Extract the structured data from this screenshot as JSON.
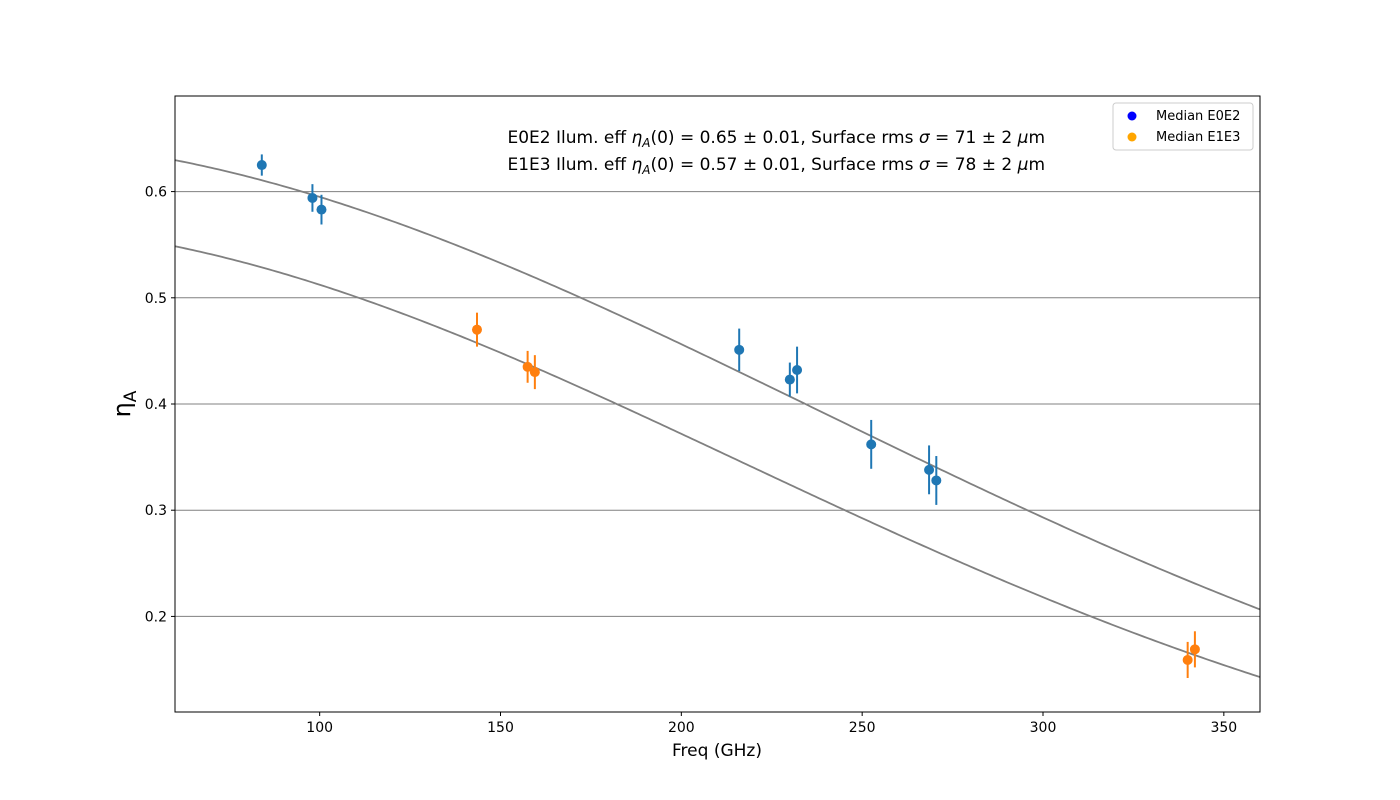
{
  "chart_data": {
    "type": "scatter",
    "xlabel": "Freq (GHz)",
    "ylabel": "η",
    "ylabel_sub": "A",
    "xlim": [
      60,
      360
    ],
    "ylim": [
      0.11,
      0.69
    ],
    "xticks": [
      100,
      150,
      200,
      250,
      300,
      350
    ],
    "yticks": [
      0.2,
      0.3,
      0.4,
      0.5,
      0.6
    ],
    "grid": "horizontal",
    "legend_position": "top-right",
    "annotations": [
      {
        "pre": "E0E2 Ilum. eff ",
        "eta": "η",
        "eta_sub": "A",
        "mid": "(0) = 0.65 ± 0.01,  Surface rms  ",
        "sigma": "σ",
        "post": " = 71 ± 2 ",
        "mu": "μ",
        "unit": "m"
      },
      {
        "pre": "E1E3 Ilum. eff ",
        "eta": "η",
        "eta_sub": "A",
        "mid": "(0) = 0.57 ± 0.01,  Surface rms  ",
        "sigma": "σ",
        "post": " = 78 ± 2 ",
        "mu": "μ",
        "unit": "m"
      }
    ],
    "series": [
      {
        "name": "Median E0E2",
        "color": "#1f77b4",
        "legend_color": "#0000ff",
        "points": [
          {
            "x": 84,
            "y": 0.625,
            "err": 0.01
          },
          {
            "x": 98,
            "y": 0.594,
            "err": 0.013
          },
          {
            "x": 100.5,
            "y": 0.583,
            "err": 0.014
          },
          {
            "x": 216,
            "y": 0.451,
            "err": 0.02
          },
          {
            "x": 230,
            "y": 0.423,
            "err": 0.016
          },
          {
            "x": 232,
            "y": 0.432,
            "err": 0.022
          },
          {
            "x": 252.5,
            "y": 0.362,
            "err": 0.023
          },
          {
            "x": 268.5,
            "y": 0.338,
            "err": 0.023
          },
          {
            "x": 270.5,
            "y": 0.328,
            "err": 0.023
          }
        ]
      },
      {
        "name": "Median E1E3",
        "color": "#ff7f0e",
        "legend_color": "#ffa500",
        "points": [
          {
            "x": 143.5,
            "y": 0.47,
            "err": 0.016
          },
          {
            "x": 157.5,
            "y": 0.435,
            "err": 0.015
          },
          {
            "x": 159.5,
            "y": 0.43,
            "err": 0.016
          },
          {
            "x": 340,
            "y": 0.159,
            "err": 0.017
          },
          {
            "x": 342,
            "y": 0.169,
            "err": 0.017
          }
        ]
      }
    ],
    "fits": [
      {
        "eta0": 0.65,
        "sigma_um": 71,
        "color": "#808080"
      },
      {
        "eta0": 0.57,
        "sigma_um": 78,
        "color": "#808080"
      }
    ]
  }
}
